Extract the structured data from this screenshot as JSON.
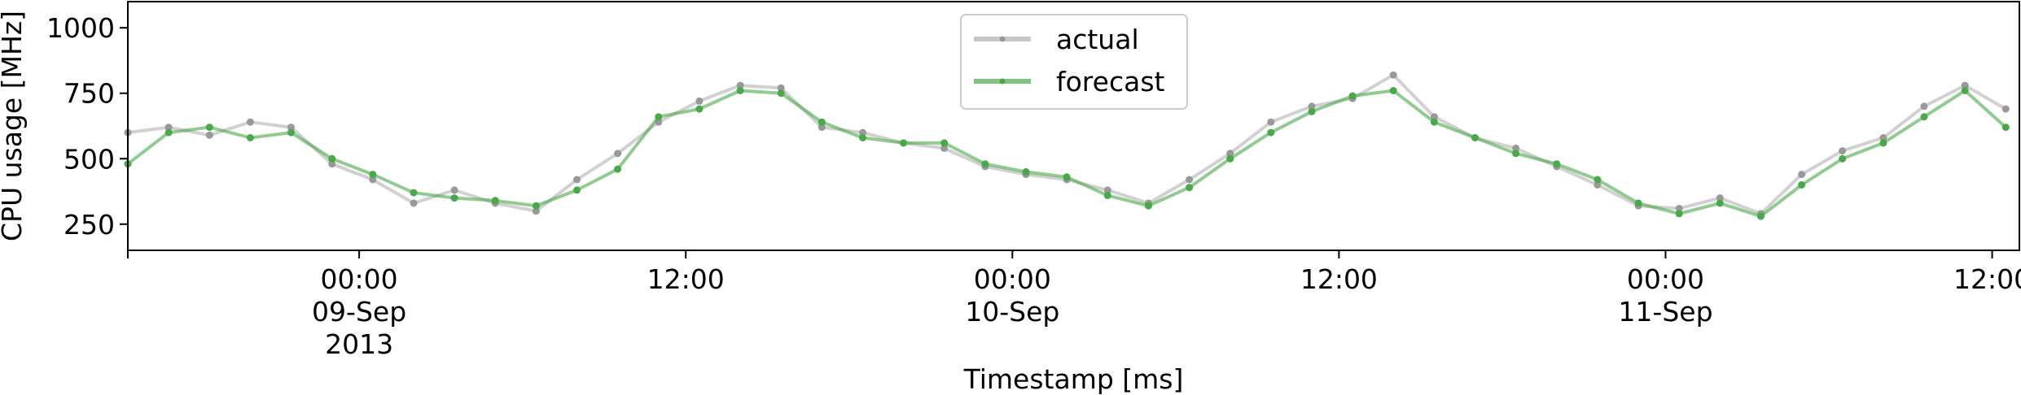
{
  "chart_data": {
    "type": "line",
    "title": "",
    "xlabel": "Timestamp [ms]",
    "ylabel": "CPU usage [MHz]",
    "x_range": [
      "2013-09-08T15:30",
      "2013-09-11T13:00"
    ],
    "ylim": [
      150,
      1100
    ],
    "y_ticks": [
      250,
      500,
      750,
      1000
    ],
    "x_ticks": [
      {
        "at": "2013-09-09T00:00",
        "lines": [
          "00:00",
          "09-Sep",
          "2013"
        ]
      },
      {
        "at": "2013-09-09T12:00",
        "lines": [
          "12:00"
        ]
      },
      {
        "at": "2013-09-10T00:00",
        "lines": [
          "00:00",
          "10-Sep"
        ]
      },
      {
        "at": "2013-09-10T12:00",
        "lines": [
          "12:00"
        ]
      },
      {
        "at": "2013-09-11T00:00",
        "lines": [
          "00:00",
          "11-Sep"
        ]
      },
      {
        "at": "2013-09-11T12:00",
        "lines": [
          "12:00"
        ]
      }
    ],
    "grid": false,
    "legend_position": "upper-center",
    "series": [
      {
        "name": "actual",
        "color": "#999999",
        "x": [
          "2013-09-08T15:30",
          "2013-09-08T17:00",
          "2013-09-08T18:30",
          "2013-09-08T20:00",
          "2013-09-08T21:30",
          "2013-09-08T23:00",
          "2013-09-09T00:30",
          "2013-09-09T02:00",
          "2013-09-09T03:30",
          "2013-09-09T05:00",
          "2013-09-09T06:30",
          "2013-09-09T08:00",
          "2013-09-09T09:30",
          "2013-09-09T11:00",
          "2013-09-09T12:30",
          "2013-09-09T14:00",
          "2013-09-09T15:30",
          "2013-09-09T17:00",
          "2013-09-09T18:30",
          "2013-09-09T20:00",
          "2013-09-09T21:30",
          "2013-09-09T23:00",
          "2013-09-10T00:30",
          "2013-09-10T02:00",
          "2013-09-10T03:30",
          "2013-09-10T05:00",
          "2013-09-10T06:30",
          "2013-09-10T08:00",
          "2013-09-10T09:30",
          "2013-09-10T11:00",
          "2013-09-10T12:30",
          "2013-09-10T14:00",
          "2013-09-10T15:30",
          "2013-09-10T17:00",
          "2013-09-10T18:30",
          "2013-09-10T20:00",
          "2013-09-10T21:30",
          "2013-09-10T23:00",
          "2013-09-11T00:30",
          "2013-09-11T02:00",
          "2013-09-11T03:30",
          "2013-09-11T05:00",
          "2013-09-11T06:30",
          "2013-09-11T08:00",
          "2013-09-11T09:30",
          "2013-09-11T11:00",
          "2013-09-11T12:30"
        ],
        "values": [
          600,
          620,
          590,
          640,
          620,
          480,
          420,
          330,
          380,
          330,
          300,
          420,
          520,
          640,
          720,
          780,
          770,
          620,
          600,
          560,
          540,
          470,
          440,
          420,
          380,
          330,
          420,
          520,
          640,
          700,
          730,
          820,
          660,
          580,
          540,
          470,
          400,
          320,
          310,
          350,
          290,
          440,
          530,
          580,
          700,
          780,
          690
        ]
      },
      {
        "name": "forecast",
        "color": "#4aa84a",
        "x": [
          "2013-09-08T15:30",
          "2013-09-08T17:00",
          "2013-09-08T18:30",
          "2013-09-08T20:00",
          "2013-09-08T21:30",
          "2013-09-08T23:00",
          "2013-09-09T00:30",
          "2013-09-09T02:00",
          "2013-09-09T03:30",
          "2013-09-09T05:00",
          "2013-09-09T06:30",
          "2013-09-09T08:00",
          "2013-09-09T09:30",
          "2013-09-09T11:00",
          "2013-09-09T12:30",
          "2013-09-09T14:00",
          "2013-09-09T15:30",
          "2013-09-09T17:00",
          "2013-09-09T18:30",
          "2013-09-09T20:00",
          "2013-09-09T21:30",
          "2013-09-09T23:00",
          "2013-09-10T00:30",
          "2013-09-10T02:00",
          "2013-09-10T03:30",
          "2013-09-10T05:00",
          "2013-09-10T06:30",
          "2013-09-10T08:00",
          "2013-09-10T09:30",
          "2013-09-10T11:00",
          "2013-09-10T12:30",
          "2013-09-10T14:00",
          "2013-09-10T15:30",
          "2013-09-10T17:00",
          "2013-09-10T18:30",
          "2013-09-10T20:00",
          "2013-09-10T21:30",
          "2013-09-10T23:00",
          "2013-09-11T00:30",
          "2013-09-11T02:00",
          "2013-09-11T03:30",
          "2013-09-11T05:00",
          "2013-09-11T06:30",
          "2013-09-11T08:00",
          "2013-09-11T09:30",
          "2013-09-11T11:00",
          "2013-09-11T12:30"
        ],
        "values": [
          480,
          600,
          620,
          580,
          600,
          500,
          440,
          370,
          350,
          340,
          320,
          380,
          460,
          660,
          690,
          760,
          750,
          640,
          580,
          560,
          560,
          480,
          450,
          430,
          360,
          320,
          390,
          500,
          600,
          680,
          740,
          760,
          640,
          580,
          520,
          480,
          420,
          330,
          290,
          330,
          280,
          400,
          500,
          560,
          660,
          760,
          620
        ]
      }
    ]
  }
}
